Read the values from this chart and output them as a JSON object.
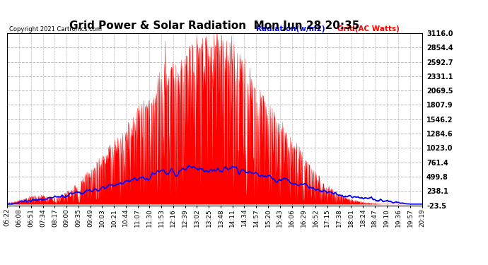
{
  "title": "Grid Power & Solar Radiation  Mon Jun 28 20:35",
  "copyright": "Copyright 2021 Cartronics.com",
  "legend_radiation": "Radiation(w/m2)",
  "legend_grid": "Grid(AC Watts)",
  "radiation_color": "blue",
  "grid_color": "red",
  "yticks_right": [
    3116.0,
    2854.4,
    2592.7,
    2331.1,
    2069.5,
    1807.9,
    1546.2,
    1284.6,
    1023.0,
    761.4,
    499.8,
    238.1,
    -23.5
  ],
  "ymin": -23.5,
  "ymax": 3116.0,
  "x_labels": [
    "05:22",
    "06:08",
    "06:51",
    "07:34",
    "08:17",
    "09:00",
    "09:35",
    "09:49",
    "10:03",
    "10:21",
    "10:44",
    "11:07",
    "11:30",
    "11:53",
    "12:16",
    "12:39",
    "13:02",
    "13:25",
    "13:48",
    "14:11",
    "14:34",
    "14:57",
    "15:20",
    "15:43",
    "16:06",
    "16:29",
    "16:52",
    "17:15",
    "17:38",
    "18:01",
    "18:24",
    "18:47",
    "19:10",
    "19:36",
    "19:57",
    "20:19"
  ],
  "background_color": "#ffffff",
  "grid_line_color": "#bbbbbb",
  "title_fontsize": 11,
  "label_fontsize": 7
}
